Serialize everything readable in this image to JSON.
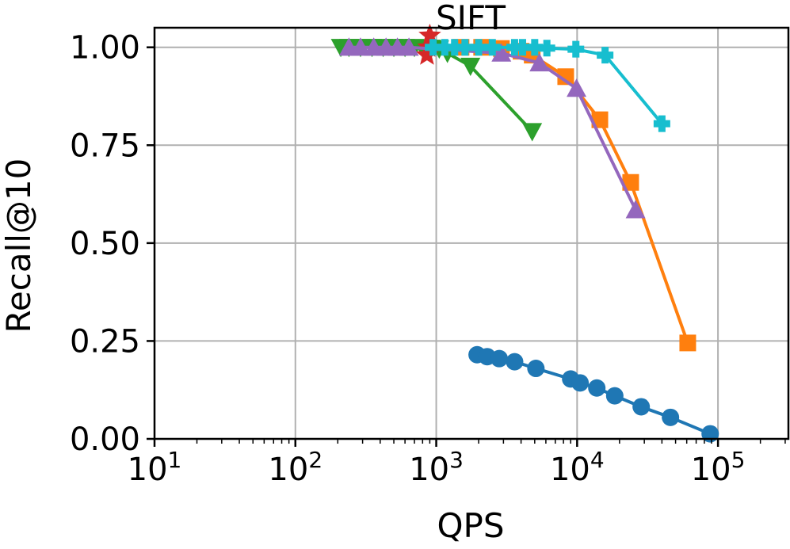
{
  "chart_data": {
    "type": "line",
    "title": "SIFT",
    "xlabel": "QPS",
    "ylabel": "Recall@10",
    "xscale": "log",
    "xlim": [
      10,
      316228
    ],
    "ylim": [
      0,
      1.05
    ],
    "grid": true,
    "x_ticks": [
      {
        "value": 10,
        "base": "10",
        "exp": "1"
      },
      {
        "value": 100,
        "base": "10",
        "exp": "2"
      },
      {
        "value": 1000,
        "base": "10",
        "exp": "3"
      },
      {
        "value": 10000,
        "base": "10",
        "exp": "4"
      },
      {
        "value": 100000,
        "base": "10",
        "exp": "5"
      }
    ],
    "y_ticks": [
      {
        "value": 0,
        "label": "0.00"
      },
      {
        "value": 0.25,
        "label": "0.25"
      },
      {
        "value": 0.5,
        "label": "0.50"
      },
      {
        "value": 0.75,
        "label": "0.75"
      },
      {
        "value": 1.0,
        "label": "1.00"
      }
    ],
    "series": [
      {
        "name": "series-blue-circle",
        "color": "#1f77b4",
        "marker": "circle",
        "x": [
          1950,
          2300,
          2800,
          3600,
          5100,
          9000,
          10500,
          13800,
          18500,
          28500,
          46000,
          88000
        ],
        "y": [
          0.215,
          0.21,
          0.205,
          0.197,
          0.18,
          0.153,
          0.143,
          0.13,
          0.11,
          0.082,
          0.055,
          0.013
        ]
      },
      {
        "name": "series-orange-square",
        "color": "#ff7f0e",
        "marker": "square",
        "x": [
          1500,
          2100,
          2900,
          4000,
          4800,
          8300,
          14500,
          24000,
          61000
        ],
        "y": [
          1.0,
          1.0,
          0.997,
          0.99,
          0.98,
          0.925,
          0.815,
          0.655,
          0.245
        ]
      },
      {
        "name": "series-green-triangle-down",
        "color": "#2ca02c",
        "marker": "triangle-down",
        "x": [
          210,
          240,
          290,
          350,
          420,
          500,
          600,
          700,
          800,
          920,
          1050,
          1200,
          1750,
          4800
        ],
        "y": [
          1.0,
          1.0,
          1.0,
          1.0,
          1.0,
          1.0,
          1.0,
          1.0,
          0.999,
          0.998,
          0.996,
          0.985,
          0.952,
          0.785
        ]
      },
      {
        "name": "series-red-star",
        "color": "#d62728",
        "marker": "star",
        "x": [
          860,
          880,
          900
        ],
        "y": [
          0.98,
          1.0,
          1.03
        ]
      },
      {
        "name": "series-purple-triangle-up",
        "color": "#9467bd",
        "marker": "triangle-up",
        "x": [
          240,
          290,
          360,
          440,
          530,
          640,
          2900,
          5400,
          9900,
          26000
        ],
        "y": [
          1.0,
          1.0,
          1.0,
          1.0,
          1.0,
          1.0,
          0.985,
          0.96,
          0.895,
          0.585
        ]
      },
      {
        "name": "series-cyan-plus",
        "color": "#17becf",
        "marker": "plus",
        "x": [
          950,
          1150,
          1350,
          1600,
          2000,
          2500,
          3600,
          4100,
          5000,
          6100,
          9800,
          15800,
          40000
        ],
        "y": [
          1.0,
          1.0,
          1.0,
          1.0,
          1.0,
          1.0,
          1.0,
          1.0,
          1.0,
          0.998,
          0.995,
          0.98,
          0.805
        ]
      }
    ]
  }
}
